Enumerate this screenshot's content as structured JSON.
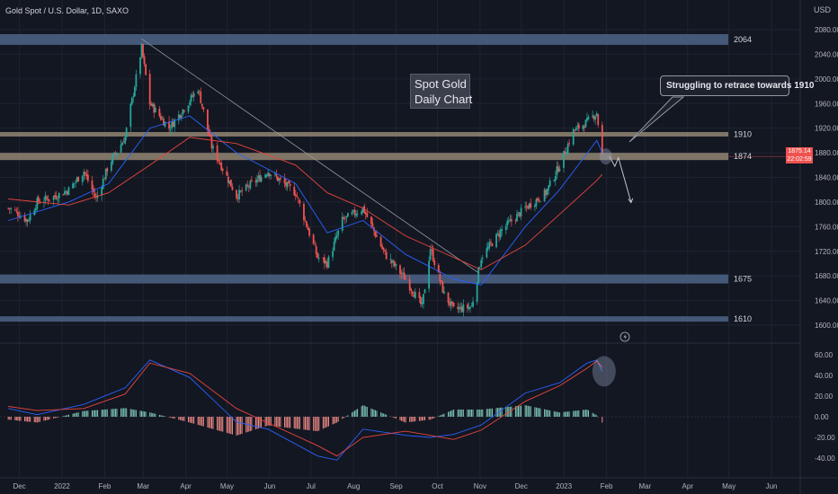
{
  "header": {
    "symbol_line": "Gold Spot / U.S. Dollar, 1D, SAXO",
    "currency": "USD"
  },
  "annotations": {
    "title_lines": [
      "Spot Gold",
      "Daily Chart"
    ],
    "callout": "Struggling to retrace towards 1910",
    "levels": [
      "2064",
      "1910",
      "1874",
      "1675",
      "1610"
    ]
  },
  "price_tags": {
    "last_price": "1875.14",
    "countdown": "22:02:59"
  },
  "colors": {
    "background": "#131722",
    "up": "#26a69a",
    "down": "#ef5350",
    "zone_blue": "#4a5f82",
    "zone_tan": "#8c806e",
    "ma_blue": "#2962ff",
    "ma_red": "#e8453c"
  },
  "icons": {
    "alert": "lightning-icon"
  },
  "chart_data": [
    {
      "type": "candlestick",
      "title": "",
      "x_tick_labels": [
        "Dec",
        "2022",
        "Feb",
        "Mar",
        "Apr",
        "May",
        "Jun",
        "Jul",
        "Aug",
        "Sep",
        "Oct",
        "Nov",
        "Dec",
        "2023",
        "Feb",
        "Mar",
        "Apr",
        "May",
        "Jun"
      ],
      "y_tick_labels": [
        "2080.00",
        "2040.00",
        "2000.00",
        "1960.00",
        "1920.00",
        "1880.00",
        "1840.00",
        "1800.00",
        "1760.00",
        "1720.00",
        "1680.00",
        "1640.00",
        "1600.00"
      ],
      "ylim": [
        1590,
        2095
      ],
      "horizontal_levels": [
        2064,
        1910,
        1874,
        1675,
        1610
      ],
      "last_price": 1875.14,
      "price_path": [
        {
          "x": "2021-12-01",
          "close": 1790
        },
        {
          "x": "2021-12-06",
          "close": 1785
        },
        {
          "x": "2021-12-15",
          "close": 1770
        },
        {
          "x": "2021-12-22",
          "close": 1800
        },
        {
          "x": "2022-01-05",
          "close": 1810
        },
        {
          "x": "2022-01-14",
          "close": 1820
        },
        {
          "x": "2022-01-25",
          "close": 1850
        },
        {
          "x": "2022-02-03",
          "close": 1805
        },
        {
          "x": "2022-02-12",
          "close": 1860
        },
        {
          "x": "2022-02-24",
          "close": 1905
        },
        {
          "x": "2022-03-08",
          "close": 2050
        },
        {
          "x": "2022-03-14",
          "close": 1960
        },
        {
          "x": "2022-03-28",
          "close": 1920
        },
        {
          "x": "2022-04-12",
          "close": 1965
        },
        {
          "x": "2022-04-18",
          "close": 1985
        },
        {
          "x": "2022-04-28",
          "close": 1890
        },
        {
          "x": "2022-05-16",
          "close": 1810
        },
        {
          "x": "2022-06-08",
          "close": 1850
        },
        {
          "x": "2022-06-28",
          "close": 1815
        },
        {
          "x": "2022-07-14",
          "close": 1710
        },
        {
          "x": "2022-07-21",
          "close": 1700
        },
        {
          "x": "2022-08-01",
          "close": 1770
        },
        {
          "x": "2022-08-16",
          "close": 1790
        },
        {
          "x": "2022-09-01",
          "close": 1715
        },
        {
          "x": "2022-09-16",
          "close": 1675
        },
        {
          "x": "2022-09-28",
          "close": 1630
        },
        {
          "x": "2022-10-04",
          "close": 1725
        },
        {
          "x": "2022-10-14",
          "close": 1650
        },
        {
          "x": "2022-10-21",
          "close": 1625
        },
        {
          "x": "2022-11-03",
          "close": 1630
        },
        {
          "x": "2022-11-10",
          "close": 1710
        },
        {
          "x": "2022-11-25",
          "close": 1755
        },
        {
          "x": "2022-12-12",
          "close": 1790
        },
        {
          "x": "2022-12-27",
          "close": 1815
        },
        {
          "x": "2023-01-06",
          "close": 1860
        },
        {
          "x": "2023-01-16",
          "close": 1915
        },
        {
          "x": "2023-01-26",
          "close": 1930
        },
        {
          "x": "2023-02-02",
          "close": 1945
        },
        {
          "x": "2023-02-06",
          "close": 1875
        }
      ],
      "moving_averages": [
        {
          "color": "#2962ff",
          "path": [
            {
              "x": "2021-12-01",
              "y": 1770
            },
            {
              "x": "2022-01-14",
              "y": 1800
            },
            {
              "x": "2022-02-12",
              "y": 1830
            },
            {
              "x": "2022-03-14",
              "y": 1920
            },
            {
              "x": "2022-04-12",
              "y": 1940
            },
            {
              "x": "2022-05-16",
              "y": 1880
            },
            {
              "x": "2022-06-28",
              "y": 1830
            },
            {
              "x": "2022-07-21",
              "y": 1750
            },
            {
              "x": "2022-08-16",
              "y": 1770
            },
            {
              "x": "2022-09-16",
              "y": 1715
            },
            {
              "x": "2022-10-21",
              "y": 1675
            },
            {
              "x": "2022-11-10",
              "y": 1665
            },
            {
              "x": "2022-12-12",
              "y": 1760
            },
            {
              "x": "2023-01-06",
              "y": 1820
            },
            {
              "x": "2023-02-02",
              "y": 1900
            },
            {
              "x": "2023-02-06",
              "y": 1880
            }
          ]
        },
        {
          "color": "#e8453c",
          "path": [
            {
              "x": "2021-12-01",
              "y": 1805
            },
            {
              "x": "2022-01-14",
              "y": 1795
            },
            {
              "x": "2022-02-12",
              "y": 1815
            },
            {
              "x": "2022-03-14",
              "y": 1860
            },
            {
              "x": "2022-04-12",
              "y": 1905
            },
            {
              "x": "2022-05-16",
              "y": 1895
            },
            {
              "x": "2022-06-28",
              "y": 1860
            },
            {
              "x": "2022-07-21",
              "y": 1815
            },
            {
              "x": "2022-08-16",
              "y": 1790
            },
            {
              "x": "2022-09-16",
              "y": 1745
            },
            {
              "x": "2022-10-21",
              "y": 1710
            },
            {
              "x": "2022-11-10",
              "y": 1690
            },
            {
              "x": "2022-12-12",
              "y": 1730
            },
            {
              "x": "2023-01-06",
              "y": 1780
            },
            {
              "x": "2023-02-02",
              "y": 1835
            },
            {
              "x": "2023-02-06",
              "y": 1845
            }
          ]
        }
      ]
    },
    {
      "type": "macd",
      "y_tick_labels": [
        "60.00",
        "40.00",
        "20.00",
        "0.00",
        "-20.00",
        "-40.00"
      ],
      "ylim": [
        -50,
        65
      ],
      "series": [
        {
          "color": "#2962ff",
          "path": [
            {
              "x": "2021-12-01",
              "y": 8
            },
            {
              "x": "2021-12-22",
              "y": 2
            },
            {
              "x": "2022-01-25",
              "y": 12
            },
            {
              "x": "2022-02-24",
              "y": 28
            },
            {
              "x": "2022-03-14",
              "y": 55
            },
            {
              "x": "2022-04-12",
              "y": 38
            },
            {
              "x": "2022-05-16",
              "y": -5
            },
            {
              "x": "2022-06-08",
              "y": -12
            },
            {
              "x": "2022-07-14",
              "y": -38
            },
            {
              "x": "2022-07-28",
              "y": -42
            },
            {
              "x": "2022-08-16",
              "y": -12
            },
            {
              "x": "2022-09-16",
              "y": -18
            },
            {
              "x": "2022-10-04",
              "y": -20
            },
            {
              "x": "2022-10-21",
              "y": -17
            },
            {
              "x": "2022-11-10",
              "y": -8
            },
            {
              "x": "2022-12-12",
              "y": 23
            },
            {
              "x": "2023-01-06",
              "y": 33
            },
            {
              "x": "2023-01-26",
              "y": 52
            },
            {
              "x": "2023-02-02",
              "y": 55
            },
            {
              "x": "2023-02-06",
              "y": 44
            }
          ]
        },
        {
          "color": "#e8453c",
          "path": [
            {
              "x": "2021-12-01",
              "y": 10
            },
            {
              "x": "2021-12-22",
              "y": 6
            },
            {
              "x": "2022-01-25",
              "y": 8
            },
            {
              "x": "2022-02-24",
              "y": 22
            },
            {
              "x": "2022-03-14",
              "y": 52
            },
            {
              "x": "2022-04-12",
              "y": 42
            },
            {
              "x": "2022-05-16",
              "y": 8
            },
            {
              "x": "2022-06-08",
              "y": -6
            },
            {
              "x": "2022-07-14",
              "y": -28
            },
            {
              "x": "2022-07-28",
              "y": -38
            },
            {
              "x": "2022-08-16",
              "y": -20
            },
            {
              "x": "2022-09-16",
              "y": -14
            },
            {
              "x": "2022-10-04",
              "y": -18
            },
            {
              "x": "2022-10-21",
              "y": -22
            },
            {
              "x": "2022-11-10",
              "y": -13
            },
            {
              "x": "2022-12-12",
              "y": 15
            },
            {
              "x": "2023-01-06",
              "y": 30
            },
            {
              "x": "2023-01-26",
              "y": 47
            },
            {
              "x": "2023-02-02",
              "y": 54
            },
            {
              "x": "2023-02-06",
              "y": 48
            }
          ]
        }
      ]
    }
  ]
}
